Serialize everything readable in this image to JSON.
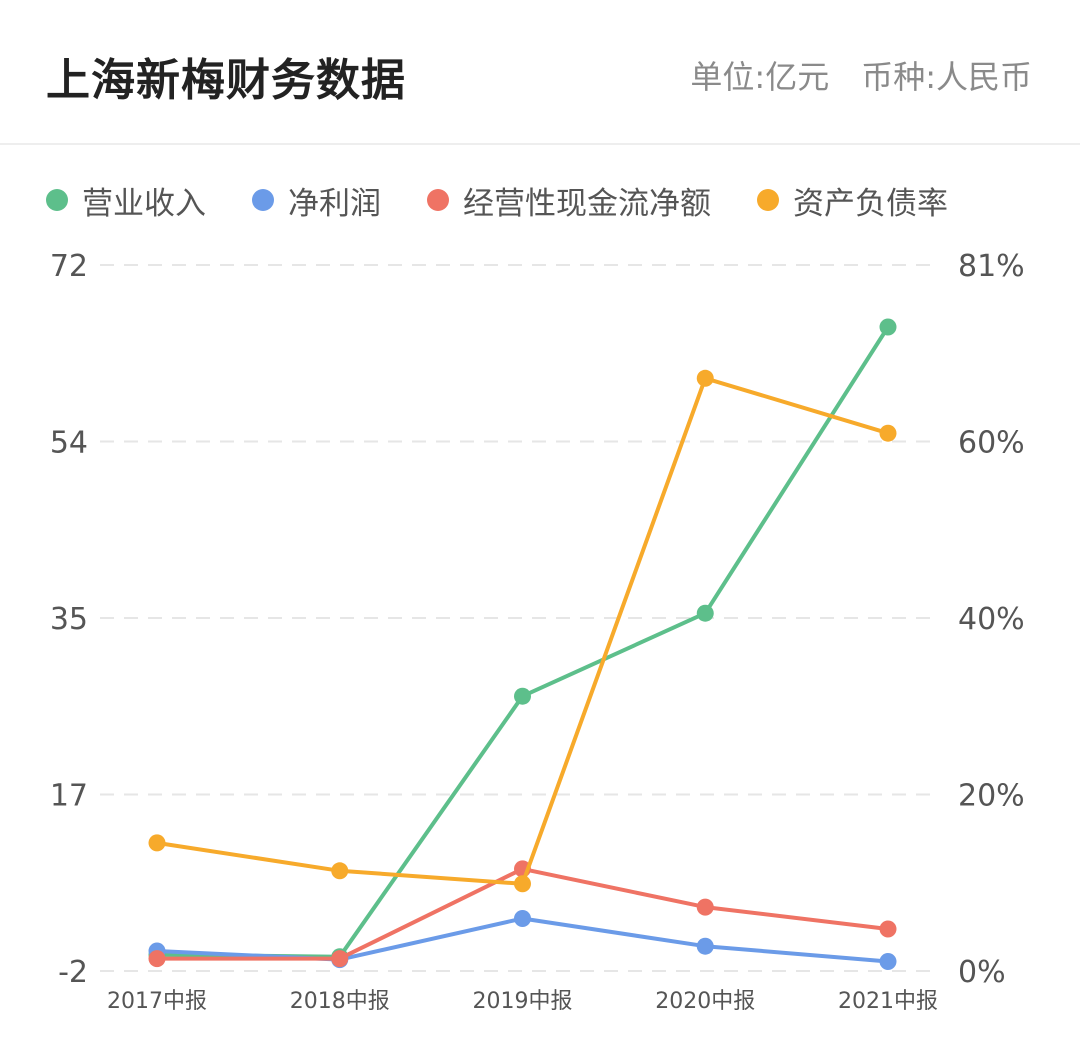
{
  "header": {
    "title": "上海新梅财务数据",
    "unit": "单位:亿元",
    "currency": "币种:人民币"
  },
  "chart_data": {
    "type": "line",
    "categories": [
      "2017中报",
      "2018中报",
      "2019中报",
      "2020中报",
      "2021中报"
    ],
    "y_left": {
      "ticks": [
        72,
        54,
        35,
        17,
        -2
      ],
      "range": [
        -2,
        72
      ]
    },
    "y_right": {
      "ticks": [
        "81%",
        "60%",
        "40%",
        "20%",
        "0%"
      ],
      "range": [
        0,
        81
      ]
    },
    "grid": "horizontal-dashed",
    "legend_position": "top-left",
    "series": [
      {
        "name": "营业收入",
        "color": "#5dbf8b",
        "axis": "left",
        "values": [
          -0.3,
          -0.5,
          26.8,
          35.5,
          65.5
        ]
      },
      {
        "name": "净利润",
        "color": "#6b9be8",
        "axis": "left",
        "values": [
          0.1,
          -0.8,
          3.5,
          0.6,
          -1.0
        ]
      },
      {
        "name": "经营性现金流净额",
        "color": "#ef7364",
        "axis": "left",
        "values": [
          -0.7,
          -0.7,
          8.7,
          4.7,
          2.4
        ]
      },
      {
        "name": "资产负债率",
        "color": "#f7aa2b",
        "axis": "right",
        "values": [
          14.7,
          11.5,
          10.0,
          68.0,
          61.7
        ]
      }
    ]
  }
}
